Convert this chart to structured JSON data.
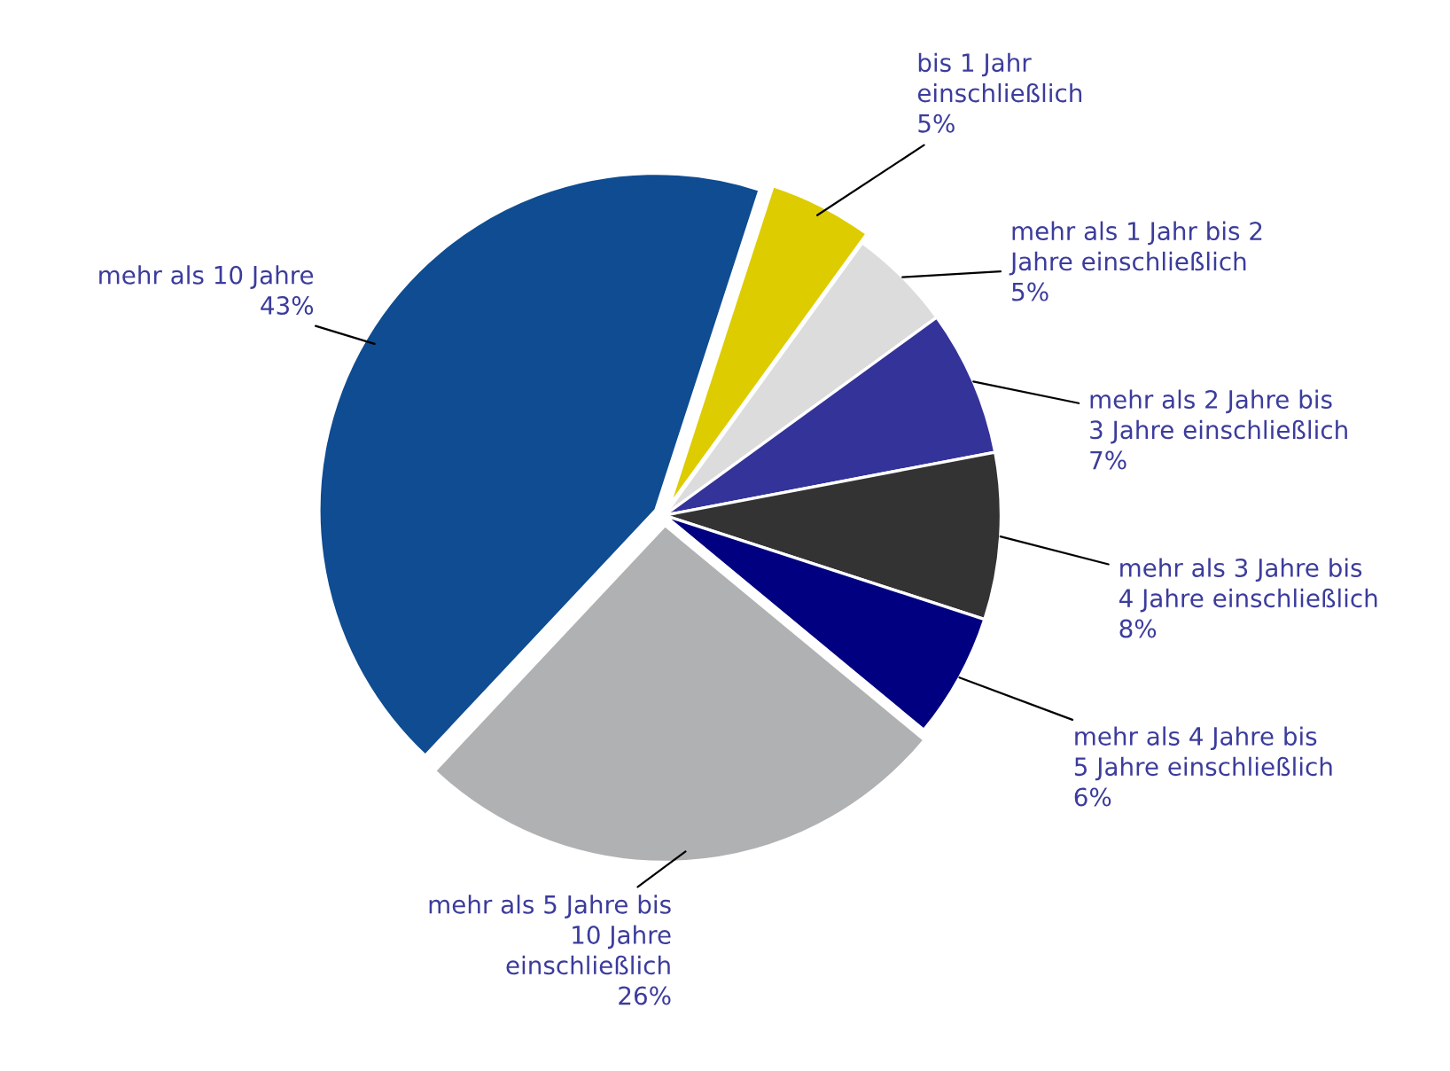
{
  "chart_data": {
    "type": "pie",
    "categories": [
      "bis 1 Jahr\neinschließlich",
      "mehr als 1 Jahr bis 2\nJahre einschließlich",
      "mehr als 2 Jahre bis\n3 Jahre einschließlich",
      "mehr als 3 Jahre bis\n4 Jahre einschließlich",
      "mehr als 4 Jahre bis\n5 Jahre einschließlich",
      "mehr als 5 Jahre bis\n10 Jahre\neinschließlich",
      "mehr als 10 Jahre"
    ],
    "values": [
      5,
      5,
      7,
      8,
      6,
      26,
      43
    ],
    "value_labels": [
      "5%",
      "5%",
      "7%",
      "8%",
      "6%",
      "26%",
      "43%"
    ],
    "colors": [
      "#ddcc00",
      "#dcdcdc",
      "#333399",
      "#333333",
      "#000080",
      "#b0b1b3",
      "#0f4c91"
    ],
    "legend": false
  }
}
